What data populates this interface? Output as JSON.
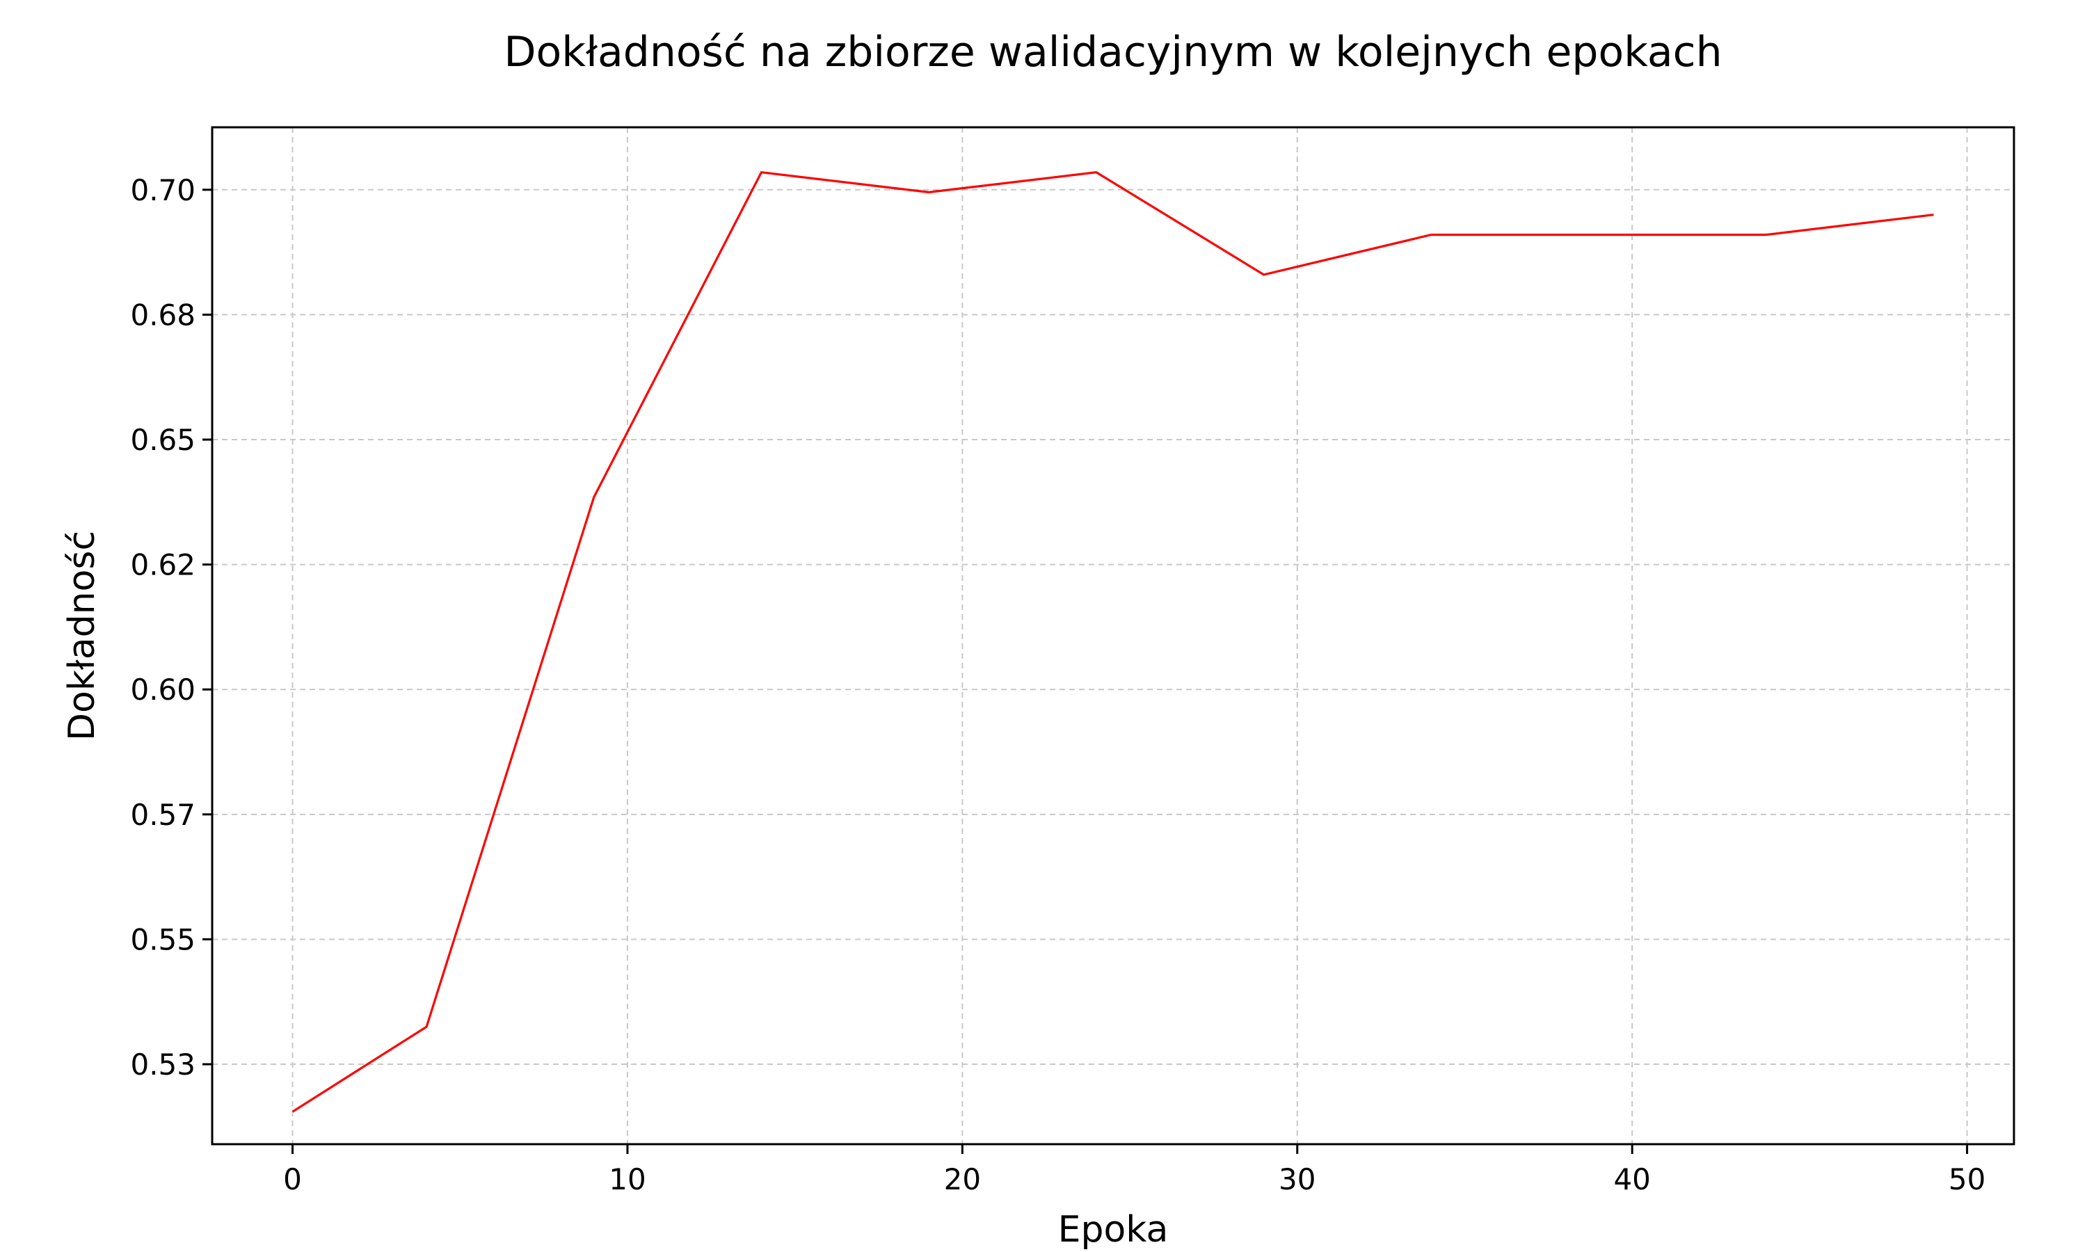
{
  "chart_data": {
    "type": "line",
    "title": "Dokładność na zbiorze walidacyjnym w kolejnych epokach",
    "xlabel": "Epoka",
    "ylabel": "Dokładność",
    "xlim": [
      -2.4,
      51.4
    ],
    "ylim": [
      0.509,
      0.7125
    ],
    "x_ticks": [
      0,
      10,
      20,
      30,
      40,
      50
    ],
    "x_tick_labels": [
      "0",
      "10",
      "20",
      "30",
      "40",
      "50"
    ],
    "y_ticks": [
      0.525,
      0.55,
      0.575,
      0.6,
      0.625,
      0.65,
      0.675,
      0.7
    ],
    "y_tick_labels": [
      "0.53",
      "0.55",
      "0.57",
      "0.60",
      "0.62",
      "0.65",
      "0.68",
      "0.70"
    ],
    "grid": true,
    "legend": "none",
    "series": [
      {
        "color": "#ff0000",
        "x": [
          0,
          4,
          9,
          14,
          19,
          24,
          29,
          34,
          39,
          44,
          49
        ],
        "y": [
          0.5155,
          0.5325,
          0.6385,
          0.7035,
          0.6995,
          0.7035,
          0.683,
          0.691,
          0.691,
          0.691,
          0.695
        ]
      }
    ]
  }
}
